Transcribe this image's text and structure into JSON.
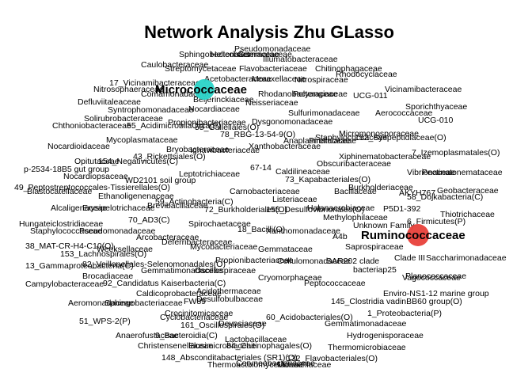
{
  "title": "Network Analysis Zhu GLasso",
  "colors": {
    "hub_micro": "#2ad4c8",
    "hub_rumino": "#e8403a"
  },
  "hubs": [
    {
      "id": "micro",
      "label": "Micrococcaceae",
      "color": "#2ad4c8"
    },
    {
      "id": "rumino",
      "label": "Ruminococcaceae",
      "color": "#e8403a"
    }
  ],
  "labels": [
    "Sphingobacteriales",
    "Helicobacteraceae",
    "Pseudomonadaceae",
    "Gemmataceae",
    "Caulobacteraceae",
    "Streptomycetaceae",
    "Illumatobacteraceae",
    "Flavobacteriaceae",
    "Chitinophagaceae",
    "Rhodocyclaceae",
    "17_Vicinamibacteraceae",
    "Nitrosophaeraceae",
    "Acetobacteraceae",
    "Moraxellaceae",
    "Nitrospiraceae",
    "Comamonadaceae",
    "Vicinamibacteraceae",
    "Defluviitaleaceae",
    "Beijerinckiaceae",
    "Rhodanobacteraceae",
    "Polyangiaceae",
    "UCG-011",
    "Syntrophomonadaceae",
    "Nocardiaceae",
    "Neisseriaceae",
    "Sporichthyaceae",
    "Solirubrobacteraceae",
    "Sulfurimonadaceae",
    "Aerococcaceae",
    "Chthoniobacteraceae",
    "55_AcidimicrobiiaOota(P)",
    "55_Gallellales(O)",
    "Dysgonomonadaceae",
    "UCG-010",
    "Micromonosporaceae",
    "Mycoplasmataceae",
    "78_RBG-13-54-9(O)",
    "Propionibacteriaceae",
    "152_Syspeptidiaceae(O)",
    "Pirellulaceae",
    "Nocardioidaceae",
    "Xanthobacteraceae",
    "Anaplasmataceae",
    "Bryobacteraceae",
    "Ignavibacteriaceae",
    "7_Izemoplasmatales(O)",
    "43_Rickettsiales(O)",
    "Xiphinematobacteraceae",
    "Staphylococcaceae",
    "p-2534-18B5 gut group",
    "Opitutaceae",
    "Obscuribacteraceae",
    "154_Negativicutes(C)",
    "Vibrionaceae",
    "Pectinatonemataceae",
    "Nocardiopsaceae",
    "67-14",
    "Caldilineaceae",
    "WD2101 soil group",
    "Leptotrichiaceae",
    "73_Kapabacteriales(O)",
    "Bacillaceae",
    "49_Peptostreptococcales-Tissierellales(O)",
    "Blastocatellaceae",
    "Ethanoligenenaceae",
    "Carnobacteriaceae",
    "Burkholderiaceae",
    "AKYH767",
    "Geobacteraceae",
    "59_Actinobacteria(C)",
    "Listeriaceae",
    "58_Dojkabacteria(C)",
    "Alcaligenaceae",
    "Erysipelotrichaceae",
    "Brevibacillaceae",
    "72_Burkholderiales(O)",
    "155_Desulfovibrionales(O)",
    "P5D1-392",
    "Thiotrichaceae",
    "Hungateiclostridiaceae",
    "70_AD3(C)",
    "Spirochaetaceae",
    "Methylophilaceae",
    "6_Firmicutes(P)",
    "Staphylococcaceae",
    "Pseudomonadaceae",
    "18_Bacilli(O)",
    "Xanthomonadaceae",
    "Unknown Family",
    "Arcobacteraceae",
    "A4b",
    "Deferribacteraceae",
    "38_MAT-CR-H4-C10(O)",
    "Weeksellaceae",
    "Mycobacteriaceae",
    "Gemmataceae",
    "Saprospiraceae",
    "Clade III",
    "Saccharimonadaceae",
    "153_Lachnospirales(O)",
    "13_Gammaproteobacteria(C)",
    "82_Veillonellales-Selenomonadales(O)",
    "Propionibacteriaceae",
    "Cellulomonadaceae",
    "SAR202 clade",
    "Gemmatimonadaceae",
    "Oscillospiraceae",
    "bacteriap25",
    "Brocadiaceae",
    "Cryomorphaceae",
    "Vagococcaceae",
    "Planococcaceae",
    "Campylobacteraceae",
    "92_Candidatus Kaiserbacteria(C)",
    "Peptococcaceae",
    "Caldicoprobacteraceae",
    "Acidothermaceae",
    "Enviro-NS1-12 marine group",
    "FW89",
    "Desulfobulbaceae",
    "145_Clostridia vadinBB60 group(O)",
    "Aeromonadaceae",
    "Sphingobacteriaceae",
    "1_Proteobacteria(P)",
    "60_Acidobacteriales(O)",
    "Crocinitomicaceae",
    "Cyclobacteriaceae",
    "Devosiaceae",
    "51_WPS-2(P)",
    "161_Oscillospirales(O)",
    "Gemmatimonadaceae",
    "Anaerofustaceae",
    "9_Bacteroidia(C)",
    "Hydrogenisporaceae",
    "Christensenellaceae",
    "Elusimicrobiaceae",
    "Lactobacillaceae",
    "148_Absconditabacteriales (SR1)(O)",
    "84_Chitinophagales(O)",
    "Thermomicrobiaceae",
    "Thermoactinomycetaceae",
    "Coryneobacteriaceae",
    "132_Flavobacteriales(O)",
    "Moraxellaceae",
    "Halanaerobiaceae"
  ]
}
